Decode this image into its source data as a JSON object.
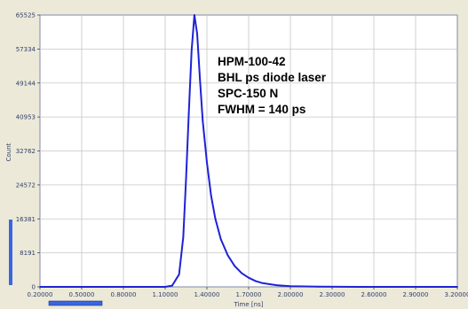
{
  "chart_data": {
    "type": "line",
    "xlabel": "Time [ns]",
    "ylabel": "Count",
    "xlim": [
      0.2,
      3.2
    ],
    "ylim": [
      0,
      65525
    ],
    "x_ticks": [
      "0.20000",
      "0.50000",
      "0.80000",
      "1.10000",
      "1.40000",
      "1.70000",
      "2.00000",
      "2.30000",
      "2.60000",
      "2.90000",
      "3.20000"
    ],
    "y_ticks": [
      "0",
      "8191",
      "16381",
      "24572",
      "32762",
      "40953",
      "49144",
      "57334",
      "65525"
    ],
    "grid": true,
    "annotations": [
      "HPM-100-42",
      "BHL ps diode laser",
      "SPC-150 N",
      "FWHM = 140 ps"
    ],
    "series": [
      {
        "color": "#1f22d6",
        "x": [
          0.2,
          0.6,
          1.0,
          1.1,
          1.15,
          1.2,
          1.23,
          1.25,
          1.27,
          1.29,
          1.31,
          1.33,
          1.35,
          1.37,
          1.4,
          1.43,
          1.46,
          1.5,
          1.55,
          1.6,
          1.65,
          1.7,
          1.75,
          1.8,
          1.9,
          2.0,
          2.2,
          2.5,
          3.2
        ],
        "y": [
          0,
          0,
          0,
          0,
          300,
          3000,
          12000,
          26000,
          42000,
          57000,
          65525,
          61000,
          50000,
          40000,
          30000,
          22000,
          16500,
          11500,
          7600,
          5000,
          3300,
          2200,
          1400,
          900,
          400,
          150,
          40,
          0,
          0
        ]
      }
    ]
  },
  "scrollbars": {
    "x_thumb_fraction": [
      0.0,
      0.27
    ],
    "y_thumb_fraction": [
      0.0,
      0.26
    ]
  }
}
